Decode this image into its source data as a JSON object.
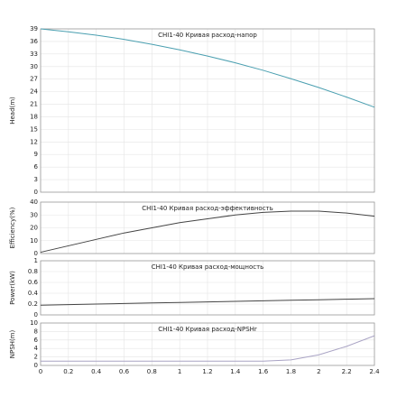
{
  "chart_data": [
    {
      "type": "line",
      "title": "CHI1-40 Кривая расход-напор",
      "y_label": "Head(m)",
      "x": [
        0,
        0.2,
        0.4,
        0.6,
        0.8,
        1,
        1.2,
        1.4,
        1.6,
        1.8,
        2,
        2.2,
        2.4
      ],
      "series": [
        {
          "color": "#4a9fb0",
          "values": [
            39,
            38.3,
            37.5,
            36.5,
            35.3,
            34,
            32.5,
            30.9,
            29.1,
            27.1,
            25,
            22.7,
            20.3
          ]
        }
      ],
      "xlim": [
        0,
        2.4
      ],
      "xticks": [
        0,
        0.2,
        0.4,
        0.6,
        0.8,
        1,
        1.2,
        1.4,
        1.6,
        1.8,
        2,
        2.2,
        2.4
      ],
      "ylim": [
        0,
        39
      ],
      "yticks": [
        0,
        3,
        6,
        9,
        12,
        15,
        18,
        21,
        24,
        27,
        30,
        33,
        36,
        39
      ],
      "grid": true
    },
    {
      "type": "line",
      "title": "CHI1-40 Кривая расход-эффективность",
      "y_label": "Efficiency(%)",
      "x": [
        0,
        0.2,
        0.4,
        0.6,
        0.8,
        1,
        1.2,
        1.4,
        1.6,
        1.8,
        2,
        2.2,
        2.4
      ],
      "series": [
        {
          "color": "#444444",
          "values": [
            1,
            6,
            11,
            16,
            20,
            24,
            27,
            30,
            32,
            33,
            33,
            31.5,
            29
          ]
        }
      ],
      "xlim": [
        0,
        2.4
      ],
      "xticks": [
        0,
        0.2,
        0.4,
        0.6,
        0.8,
        1,
        1.2,
        1.4,
        1.6,
        1.8,
        2,
        2.2,
        2.4
      ],
      "ylim": [
        0,
        40
      ],
      "yticks": [
        0,
        10,
        20,
        30,
        40
      ],
      "grid": true
    },
    {
      "type": "line",
      "title": "CHI1-40 Кривая расход-мощность",
      "y_label": "Power(kW)",
      "x": [
        0,
        0.2,
        0.4,
        0.6,
        0.8,
        1,
        1.2,
        1.4,
        1.6,
        1.8,
        2,
        2.2,
        2.4
      ],
      "series": [
        {
          "color": "#444444",
          "values": [
            0.18,
            0.19,
            0.2,
            0.21,
            0.22,
            0.23,
            0.24,
            0.25,
            0.26,
            0.27,
            0.28,
            0.29,
            0.3
          ]
        }
      ],
      "xlim": [
        0,
        2.4
      ],
      "xticks": [
        0,
        0.2,
        0.4,
        0.6,
        0.8,
        1,
        1.2,
        1.4,
        1.6,
        1.8,
        2,
        2.2,
        2.4
      ],
      "ylim": [
        0,
        1
      ],
      "yticks": [
        0,
        0.2,
        0.4,
        0.6,
        0.8,
        1
      ],
      "grid": true
    },
    {
      "type": "line",
      "title": "CHI1-40 Кривая расход-NPSHr",
      "y_label": "NPSH(m)",
      "x": [
        0,
        0.2,
        0.4,
        0.6,
        0.8,
        1,
        1.2,
        1.4,
        1.6,
        1.8,
        2,
        2.2,
        2.4
      ],
      "series": [
        {
          "color": "#a9a3c4",
          "values": [
            1,
            1,
            1,
            1,
            1,
            1,
            1,
            1,
            1,
            1.3,
            2.5,
            4.5,
            7
          ]
        }
      ],
      "xlim": [
        0,
        2.4
      ],
      "xticks": [
        0,
        0.2,
        0.4,
        0.6,
        0.8,
        1,
        1.2,
        1.4,
        1.6,
        1.8,
        2,
        2.2,
        2.4
      ],
      "ylim": [
        0,
        10
      ],
      "yticks": [
        0,
        2,
        4,
        6,
        8,
        10
      ],
      "grid": true
    }
  ]
}
